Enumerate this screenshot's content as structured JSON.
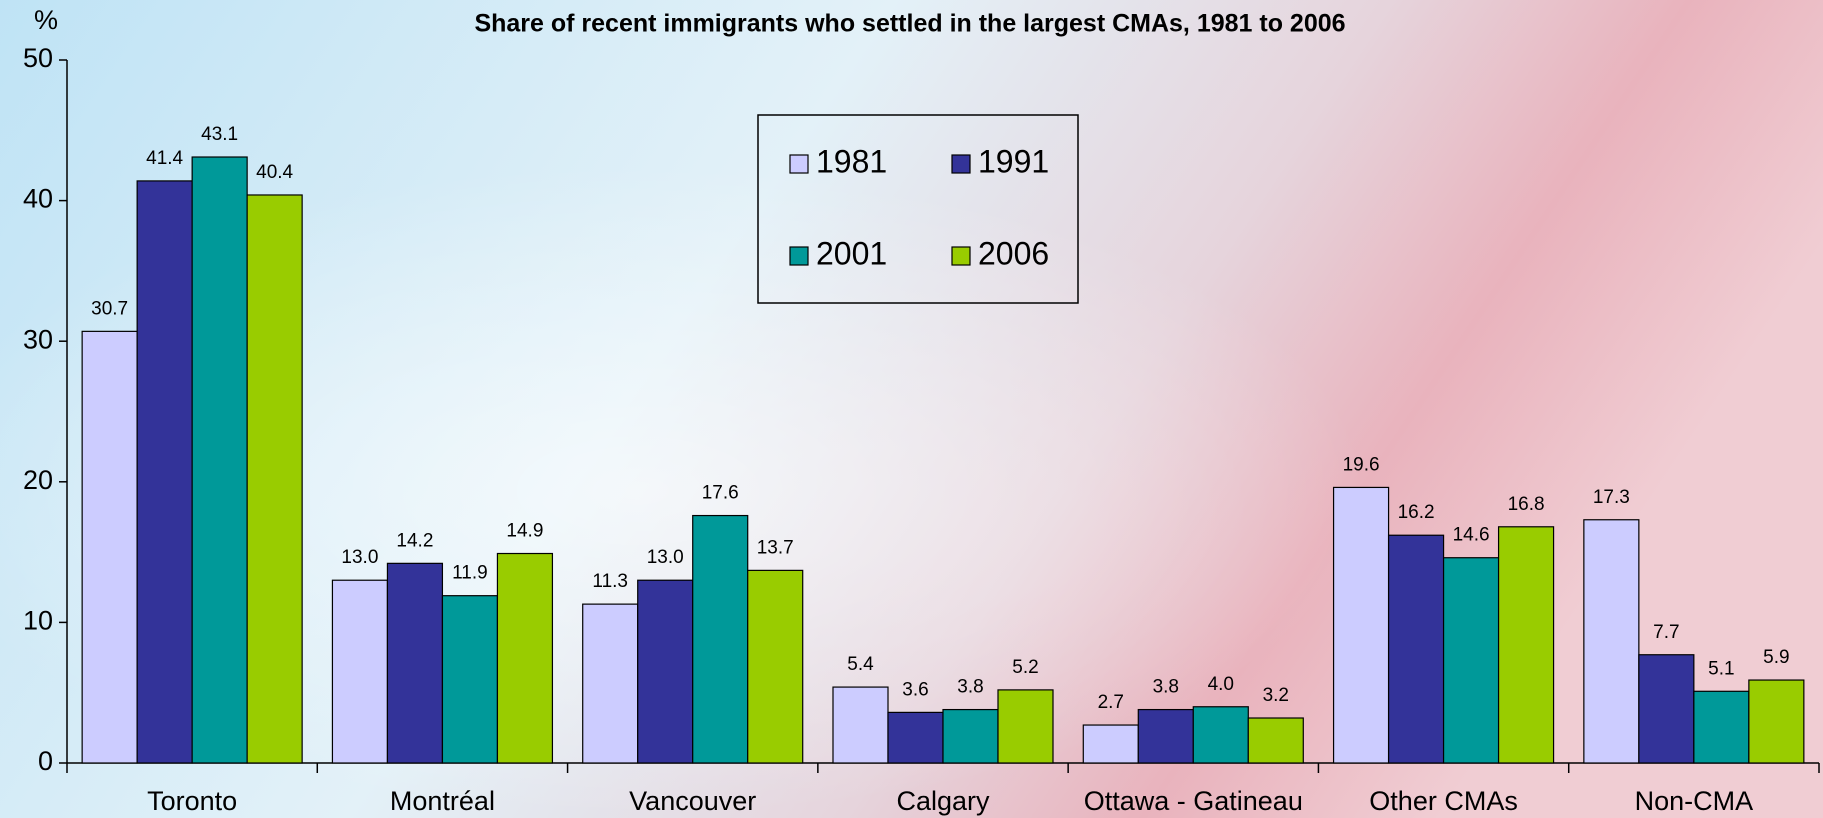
{
  "chart_data": {
    "type": "bar",
    "title": "Share of recent immigrants who settled in the largest CMAs, 1981 to 2006",
    "y_label": "%",
    "categories": [
      "Toronto",
      "Montréal",
      "Vancouver",
      "Calgary",
      "Ottawa - Gatineau",
      "Other CMAs",
      "Non-CMA"
    ],
    "series": [
      {
        "name": "1981",
        "color": "#ccccff",
        "values": [
          30.7,
          13.0,
          11.3,
          5.4,
          2.7,
          19.6,
          17.3
        ],
        "value_labels": [
          "30.7",
          "13.0",
          "11.3",
          "5.4",
          "2.7",
          "19.6",
          "17.3"
        ]
      },
      {
        "name": "1991",
        "color": "#333399",
        "values": [
          41.4,
          14.2,
          13.0,
          3.6,
          3.8,
          16.2,
          7.7
        ],
        "value_labels": [
          "41.4",
          "14.2",
          "13.0",
          "3.6",
          "3.8",
          "16.2",
          "7.7"
        ]
      },
      {
        "name": "2001",
        "color": "#009999",
        "values": [
          43.1,
          11.9,
          17.6,
          3.8,
          4.0,
          14.6,
          5.1
        ],
        "value_labels": [
          "43.1",
          "11.9",
          "17.6",
          "3.8",
          "4.0",
          "14.6",
          "5.1"
        ]
      },
      {
        "name": "2006",
        "color": "#99cc00",
        "values": [
          40.4,
          14.9,
          13.7,
          5.2,
          3.2,
          16.8,
          5.9
        ],
        "value_labels": [
          "40.4",
          "14.9",
          "13.7",
          "5.2",
          "3.2",
          "16.8",
          "5.9"
        ]
      }
    ],
    "ylim": [
      0,
      50
    ],
    "yticks": [
      0,
      10,
      20,
      30,
      40,
      50
    ],
    "grid": false,
    "legend": "top"
  }
}
